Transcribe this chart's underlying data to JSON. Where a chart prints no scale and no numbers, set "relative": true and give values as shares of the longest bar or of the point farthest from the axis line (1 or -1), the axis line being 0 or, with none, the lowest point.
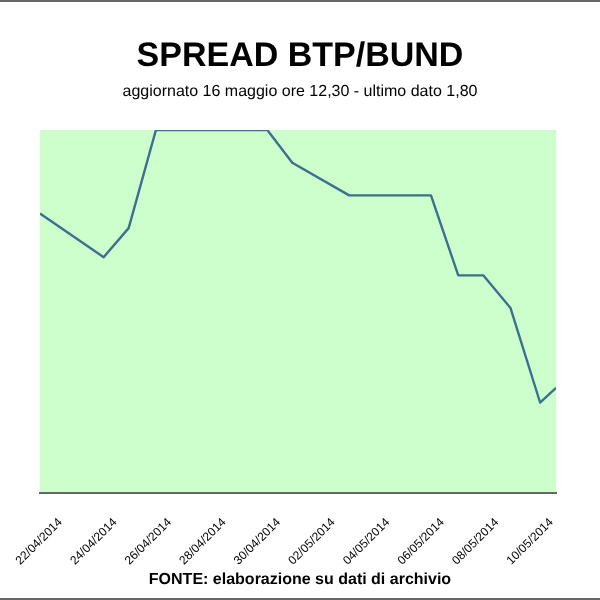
{
  "chart_data": {
    "type": "line",
    "title": "SPREAD BTP/BUND",
    "subtitle": "aggiornato 16 maggio ore 12,30 - ultimo dato 1,80",
    "annotations": [
      "FONTE: elaborazione su dati di archivio"
    ],
    "x": [
      "2014-04-21T06:00",
      "2014-04-23T14:00",
      "2014-04-24T12:00",
      "2014-04-25T12:00",
      "2014-04-29T14:00",
      "2014-04-30T12:00",
      "2014-05-02T14:00",
      "2014-05-05T14:00",
      "2014-05-06T14:00",
      "2014-05-07T12:00",
      "2014-05-08T12:00",
      "2014-05-09T14:00",
      "2014-05-10T04:00"
    ],
    "series": [
      {
        "color": "#3f6f8f",
        "values": [
          0.77,
          0.65,
          0.73,
          1,
          1,
          0.91,
          0.82,
          0.82,
          0.6,
          0.6,
          0.51,
          0.25,
          0.29
        ]
      }
    ],
    "relative": true,
    "xlim": [
      "2014-04-21T06:00",
      "2014-05-10T04:00"
    ],
    "xticks": [
      {
        "value": "2014-04-22",
        "label": "22/04/2014"
      },
      {
        "value": "2014-04-24",
        "label": "24/04/2014"
      },
      {
        "value": "2014-04-26",
        "label": "26/04/2014"
      },
      {
        "value": "2014-04-28",
        "label": "28/04/2014"
      },
      {
        "value": "2014-04-30",
        "label": "30/04/2014"
      },
      {
        "value": "2014-05-02",
        "label": "02/05/2014"
      },
      {
        "value": "2014-05-04",
        "label": "04/05/2014"
      },
      {
        "value": "2014-05-06",
        "label": "06/05/2014"
      },
      {
        "value": "2014-05-08",
        "label": "08/05/2014"
      },
      {
        "value": "2014-05-10",
        "label": "10/05/2014"
      }
    ],
    "legend": false,
    "marker": "none",
    "line_style": "solid"
  }
}
